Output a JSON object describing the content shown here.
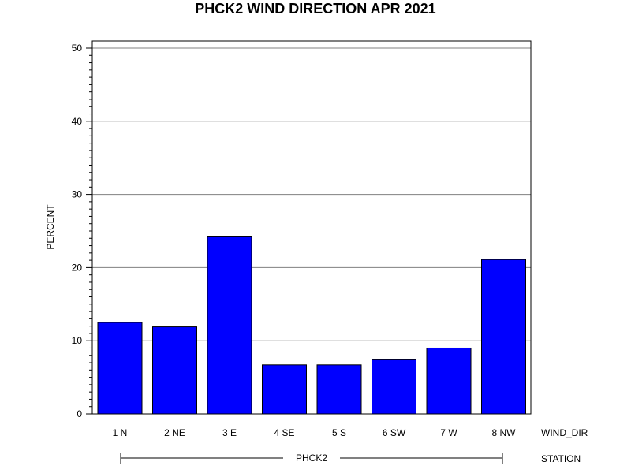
{
  "chart_data": {
    "type": "bar",
    "title": "PHCK2 WIND DIRECTION APR 2021",
    "ylabel": "PERCENT",
    "xlabel": "WIND_DIR",
    "group_axis_label": "STATION",
    "group_label": "PHCK2",
    "categories": [
      "1 N",
      "2 NE",
      "3 E",
      "4 SE",
      "5 S",
      "6 SW",
      "7 W",
      "8 NW"
    ],
    "values": [
      12.5,
      11.9,
      24.2,
      6.7,
      6.7,
      7.4,
      9.0,
      21.1
    ],
    "ylim": [
      0,
      50
    ],
    "yticks": [
      0,
      10,
      20,
      30,
      40,
      50
    ],
    "grid": true,
    "bar_color": "#0000ff"
  }
}
